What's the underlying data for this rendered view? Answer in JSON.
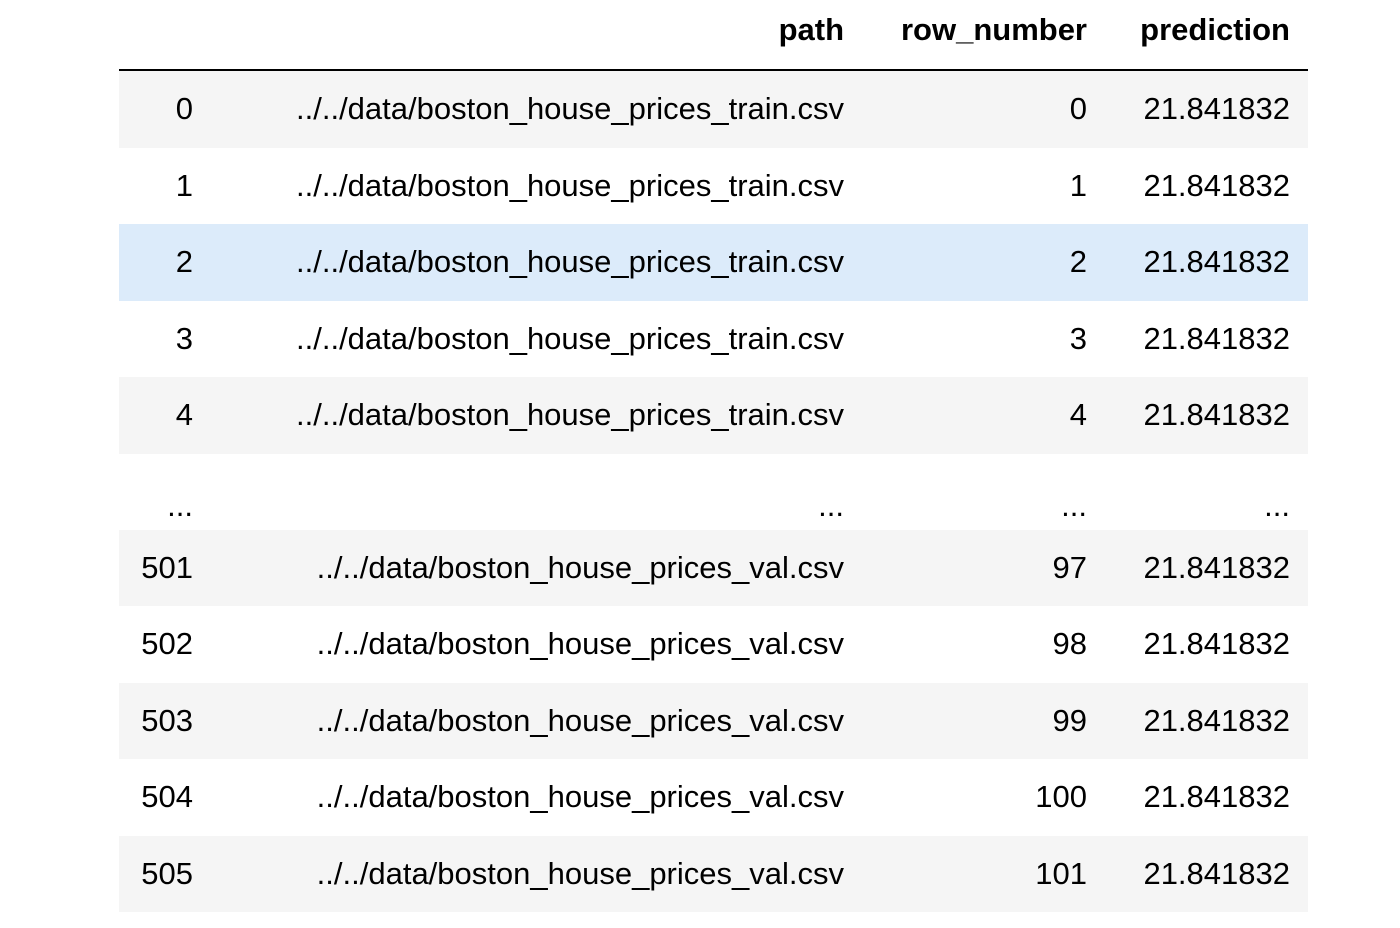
{
  "table": {
    "columns": {
      "path": "path",
      "row_number": "row_number",
      "prediction": "prediction"
    },
    "rows": [
      {
        "index": "0",
        "path": "../../data/boston_house_prices_train.csv",
        "row_number": "0",
        "prediction": "21.841832"
      },
      {
        "index": "1",
        "path": "../../data/boston_house_prices_train.csv",
        "row_number": "1",
        "prediction": "21.841832"
      },
      {
        "index": "2",
        "path": "../../data/boston_house_prices_train.csv",
        "row_number": "2",
        "prediction": "21.841832"
      },
      {
        "index": "3",
        "path": "../../data/boston_house_prices_train.csv",
        "row_number": "3",
        "prediction": "21.841832"
      },
      {
        "index": "4",
        "path": "../../data/boston_house_prices_train.csv",
        "row_number": "4",
        "prediction": "21.841832"
      },
      {
        "index": "...",
        "path": "...",
        "row_number": "...",
        "prediction": "..."
      },
      {
        "index": "501",
        "path": "../../data/boston_house_prices_val.csv",
        "row_number": "97",
        "prediction": "21.841832"
      },
      {
        "index": "502",
        "path": "../../data/boston_house_prices_val.csv",
        "row_number": "98",
        "prediction": "21.841832"
      },
      {
        "index": "503",
        "path": "../../data/boston_house_prices_val.csv",
        "row_number": "99",
        "prediction": "21.841832"
      },
      {
        "index": "504",
        "path": "../../data/boston_house_prices_val.csv",
        "row_number": "100",
        "prediction": "21.841832"
      },
      {
        "index": "505",
        "path": "../../data/boston_house_prices_val.csv",
        "row_number": "101",
        "prediction": "21.841832"
      }
    ]
  },
  "colors": {
    "striped_row": "#f5f5f5",
    "hover_row": "#dcebfa"
  }
}
